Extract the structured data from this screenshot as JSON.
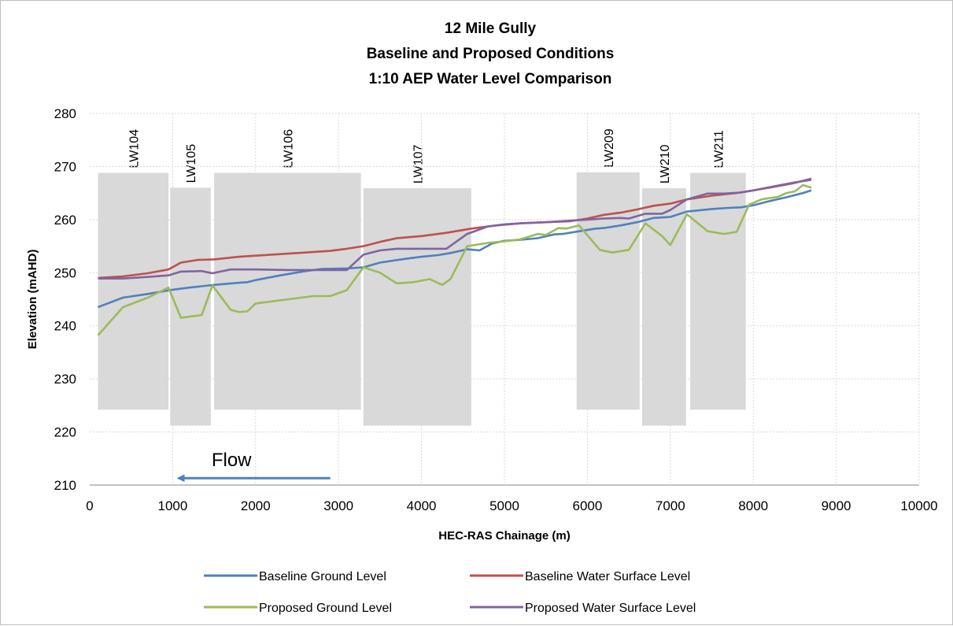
{
  "chart_data": {
    "type": "line",
    "title": [
      "12 Mile Gully",
      "Baseline and Proposed Conditions",
      "1:10 AEP Water Level Comparison"
    ],
    "xlabel": "HEC-RAS Chainage (m)",
    "ylabel": "Elevation (mAHD)",
    "xlim": [
      0,
      10000
    ],
    "ylim": [
      210,
      280
    ],
    "xticks": [
      0,
      1000,
      2000,
      3000,
      4000,
      5000,
      6000,
      7000,
      8000,
      9000,
      10000
    ],
    "yticks": [
      210,
      220,
      230,
      240,
      250,
      260,
      270,
      280
    ],
    "grid": "dotted",
    "legend_position": "bottom",
    "series": [
      {
        "name": "Baseline Ground Level",
        "color": "#4f81bd",
        "x": [
          100,
          400,
          700,
          1000,
          1200,
          1500,
          1800,
          1900,
          2000,
          2300,
          2600,
          2800,
          3100,
          3300,
          3500,
          3800,
          4000,
          4200,
          4350,
          4550,
          4700,
          4850,
          5000,
          5200,
          5400,
          5600,
          5700,
          5900,
          6100,
          6200,
          6400,
          6600,
          6800,
          7000,
          7200,
          7500,
          7700,
          7850,
          8000,
          8200,
          8400,
          8600,
          8700
        ],
        "y": [
          243.5,
          245.3,
          246.0,
          246.8,
          247.2,
          247.7,
          248.1,
          248.2,
          248.6,
          249.5,
          250.3,
          250.7,
          250.8,
          251.0,
          251.9,
          252.6,
          253.0,
          253.3,
          253.7,
          254.4,
          254.2,
          255.5,
          256.0,
          256.2,
          256.5,
          257.2,
          257.3,
          257.8,
          258.3,
          258.4,
          258.9,
          259.5,
          260.3,
          260.5,
          261.5,
          262.0,
          262.2,
          262.3,
          262.7,
          263.5,
          264.2,
          265.0,
          265.5
        ]
      },
      {
        "name": "Baseline Water Surface Level",
        "color": "#c0504d",
        "x": [
          100,
          400,
          700,
          950,
          1100,
          1300,
          1500,
          1800,
          2000,
          2300,
          2600,
          2900,
          3100,
          3300,
          3500,
          3700,
          4000,
          4300,
          4600,
          4900,
          5200,
          5500,
          5800,
          6000,
          6200,
          6400,
          6600,
          6800,
          7000,
          7200,
          7500,
          7800,
          8000,
          8300,
          8500,
          8700
        ],
        "y": [
          249.0,
          249.3,
          249.9,
          250.6,
          251.9,
          252.4,
          252.5,
          253.0,
          253.2,
          253.5,
          253.8,
          254.1,
          254.5,
          255.0,
          255.8,
          256.5,
          256.9,
          257.5,
          258.3,
          258.9,
          259.3,
          259.5,
          259.7,
          260.2,
          260.9,
          261.3,
          261.9,
          262.6,
          263.0,
          263.8,
          264.5,
          265.0,
          265.5,
          266.3,
          266.9,
          267.7
        ]
      },
      {
        "name": "Proposed Ground Level",
        "color": "#9bbb59",
        "x": [
          100,
          400,
          700,
          950,
          1100,
          1350,
          1480,
          1700,
          1800,
          1900,
          2000,
          2400,
          2700,
          2900,
          3100,
          3300,
          3500,
          3700,
          3900,
          4100,
          4250,
          4350,
          4550,
          4800,
          5000,
          5200,
          5400,
          5500,
          5650,
          5750,
          5900,
          6150,
          6300,
          6500,
          6700,
          6900,
          7000,
          7200,
          7450,
          7650,
          7800,
          7950,
          8100,
          8300,
          8400,
          8500,
          8600,
          8700
        ],
        "y": [
          238.2,
          243.5,
          245.3,
          247.2,
          241.5,
          242.0,
          247.6,
          243.0,
          242.6,
          242.7,
          244.2,
          245.0,
          245.6,
          245.6,
          246.7,
          251.0,
          250.0,
          248.0,
          248.2,
          248.8,
          247.7,
          248.8,
          255.0,
          255.6,
          255.9,
          256.3,
          257.3,
          257.1,
          258.4,
          258.3,
          258.9,
          254.3,
          253.8,
          254.3,
          259.3,
          256.9,
          255.2,
          261.0,
          257.8,
          257.3,
          257.7,
          262.8,
          263.8,
          264.3,
          265.0,
          265.3,
          266.5,
          266.0
        ]
      },
      {
        "name": "Proposed Water Surface Level",
        "color": "#8064a2",
        "x": [
          100,
          400,
          700,
          950,
          1100,
          1350,
          1480,
          1700,
          2000,
          2400,
          2800,
          3100,
          3300,
          3500,
          3700,
          3900,
          4100,
          4300,
          4550,
          4800,
          5000,
          5200,
          5500,
          5800,
          6000,
          6200,
          6400,
          6500,
          6700,
          6900,
          7000,
          7200,
          7450,
          7650,
          7850,
          8000,
          8300,
          8500,
          8700
        ],
        "y": [
          248.9,
          248.9,
          249.2,
          249.5,
          250.2,
          250.3,
          249.9,
          250.6,
          250.6,
          250.5,
          250.5,
          250.5,
          253.4,
          254.2,
          254.5,
          254.5,
          254.5,
          254.5,
          257.3,
          258.7,
          259.1,
          259.3,
          259.5,
          259.8,
          260.0,
          260.2,
          260.3,
          260.2,
          261.1,
          261.1,
          261.8,
          263.8,
          264.9,
          264.9,
          265.1,
          265.5,
          266.4,
          267.0,
          267.5
        ]
      }
    ],
    "zones": [
      {
        "label": "LW104",
        "x0": 100,
        "x1": 950,
        "y0": 224.2,
        "y1": 268.8
      },
      {
        "label": "LW105",
        "x0": 970,
        "x1": 1460,
        "y0": 221.2,
        "y1": 266.0
      },
      {
        "label": "LW106",
        "x0": 1500,
        "x1": 3270,
        "y0": 224.2,
        "y1": 268.8
      },
      {
        "label": "LW107",
        "x0": 3300,
        "x1": 4600,
        "y0": 221.2,
        "y1": 265.9
      },
      {
        "label": "LW209",
        "x0": 5870,
        "x1": 6630,
        "y0": 224.2,
        "y1": 268.9
      },
      {
        "label": "LW210",
        "x0": 6660,
        "x1": 7190,
        "y0": 221.2,
        "y1": 265.9
      },
      {
        "label": "LW211",
        "x0": 7240,
        "x1": 7910,
        "y0": 224.2,
        "y1": 268.8
      }
    ],
    "annotation": {
      "text": "Flow",
      "arrow_from": 2900,
      "arrow_to": 1050,
      "arrow_y": 211.3
    }
  }
}
